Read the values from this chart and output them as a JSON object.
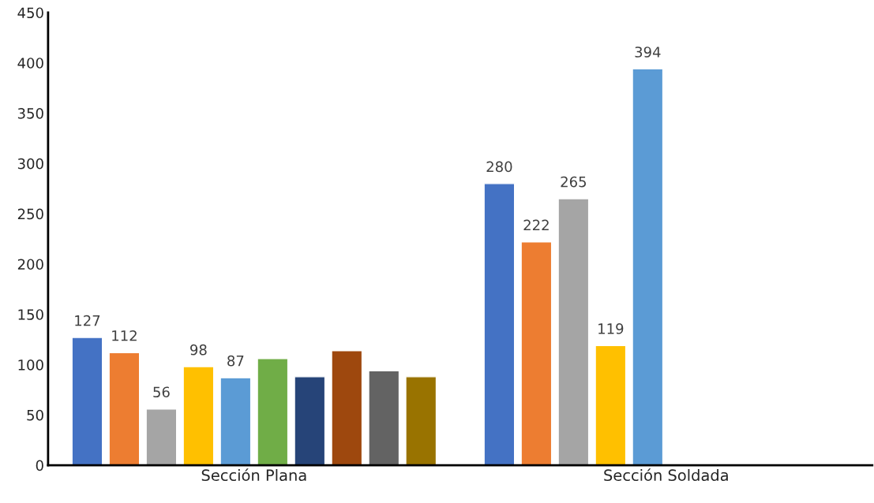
{
  "chart_data": {
    "type": "bar",
    "categories": [
      "Sección Plana",
      "Sección Soldada"
    ],
    "series": [
      {
        "color": "#4472c4",
        "values": [
          127,
          280
        ],
        "value_labels": [
          "127",
          "280"
        ]
      },
      {
        "color": "#ed7d31",
        "values": [
          112,
          222
        ],
        "value_labels": [
          "112",
          "222"
        ]
      },
      {
        "color": "#a5a5a5",
        "values": [
          56,
          265
        ],
        "value_labels": [
          "56",
          "265"
        ]
      },
      {
        "color": "#ffc000",
        "values": [
          98,
          119
        ],
        "value_labels": [
          "98",
          "119"
        ]
      },
      {
        "color": "#5b9bd5",
        "values": [
          87,
          394
        ],
        "value_labels": [
          "87",
          "394"
        ]
      },
      {
        "color": "#70ad47",
        "values": [
          106,
          null
        ]
      },
      {
        "color": "#264478",
        "values": [
          88,
          null
        ]
      },
      {
        "color": "#9e480e",
        "values": [
          114,
          null
        ]
      },
      {
        "color": "#636363",
        "values": [
          94,
          null
        ]
      },
      {
        "color": "#997300",
        "values": [
          88,
          null
        ]
      }
    ],
    "ylim": [
      0,
      450
    ],
    "yticks": [
      0,
      50,
      100,
      150,
      200,
      250,
      300,
      350,
      400,
      450
    ],
    "grid": false,
    "legend": false
  }
}
